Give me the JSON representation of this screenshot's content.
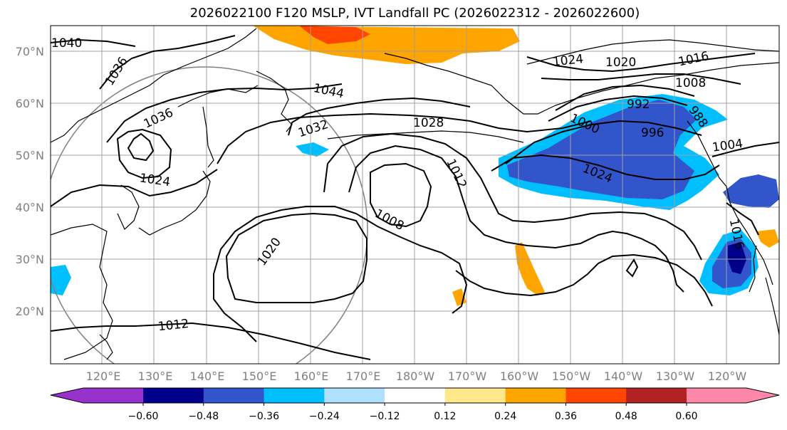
{
  "title": "2026022100 F120 MSLP, IVT Landfall PC (2026022312 - 2026022600)",
  "lat_labels": [
    "70°N",
    "60°N",
    "50°N",
    "40°N",
    "30°N",
    "20°N"
  ],
  "lon_labels": [
    "120°E",
    "130°E",
    "140°E",
    "150°E",
    "160°E",
    "170°E",
    "180°W",
    "170°W",
    "160°W",
    "150°W",
    "140°W",
    "130°W",
    "120°W"
  ],
  "isobar_labels": [
    "1040",
    "1036",
    "1036",
    "1044",
    "1032",
    "1028",
    "1024",
    "1020",
    "1012",
    "1008",
    "1012",
    "1024",
    "1020",
    "1016",
    "1008",
    "1024",
    "1000",
    "996",
    "992",
    "988",
    "1004",
    "1016"
  ],
  "colorbar": {
    "ticks": [
      "−0.60",
      "−0.48",
      "−0.36",
      "−0.24",
      "−0.12",
      "0.12",
      "0.24",
      "0.36",
      "0.48",
      "0.60"
    ],
    "colors": [
      "#9932cc",
      "#00008b",
      "#3355cc",
      "#00bfff",
      "#b0e0ff",
      "#ffffff",
      "#ffe88a",
      "#ffa500",
      "#ff4500",
      "#b22222",
      "#ff88aa",
      "#ff88aa"
    ]
  }
}
